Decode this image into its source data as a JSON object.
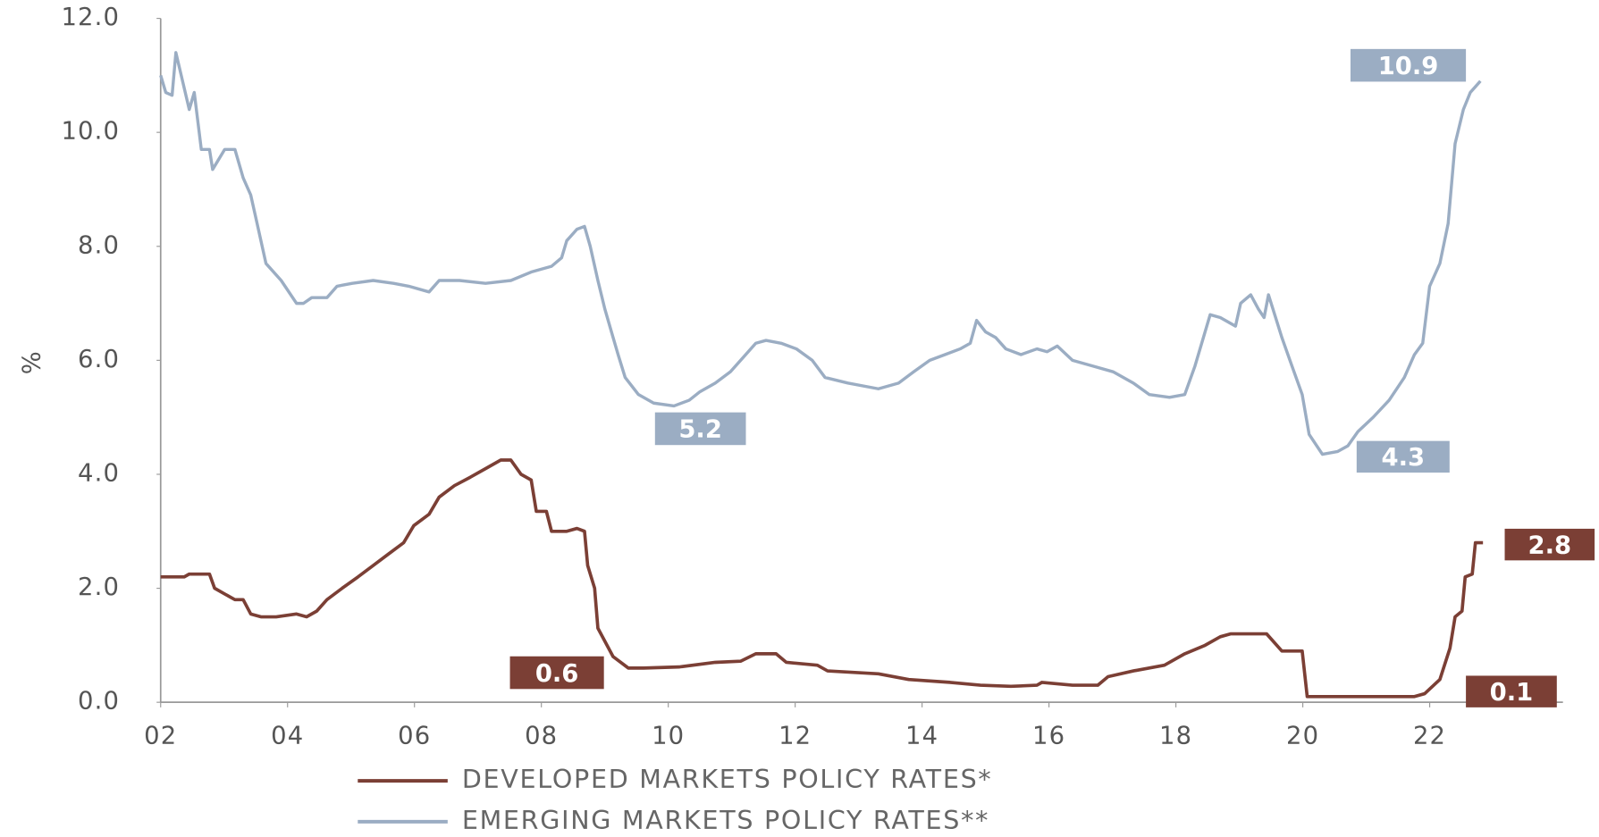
{
  "chart_data": {
    "type": "line",
    "y_label": "%",
    "xlim": [
      2002,
      2024.1
    ],
    "ylim": [
      0,
      12
    ],
    "xticks": [
      {
        "value": 2002,
        "label": "02"
      },
      {
        "value": 2004,
        "label": "04"
      },
      {
        "value": 2006,
        "label": "06"
      },
      {
        "value": 2008,
        "label": "08"
      },
      {
        "value": 2010,
        "label": "10"
      },
      {
        "value": 2012,
        "label": "12"
      },
      {
        "value": 2014,
        "label": "14"
      },
      {
        "value": 2016,
        "label": "16"
      },
      {
        "value": 2018,
        "label": "18"
      },
      {
        "value": 2020,
        "label": "20"
      },
      {
        "value": 2022,
        "label": "22"
      }
    ],
    "yticks": [
      {
        "value": 0,
        "label": "0.0"
      },
      {
        "value": 2,
        "label": "2.0"
      },
      {
        "value": 4,
        "label": "4.0"
      },
      {
        "value": 6,
        "label": "6.0"
      },
      {
        "value": 8,
        "label": "8.0"
      },
      {
        "value": 10,
        "label": "10.0"
      },
      {
        "value": 12,
        "label": "12.0"
      }
    ],
    "grid": false,
    "series": [
      {
        "name": "DEVELOPED  MARKETS POLICY RATES*",
        "color": "#7b3f35",
        "x": [
          2002.0,
          2002.37,
          2002.45,
          2002.77,
          2002.85,
          2003.01,
          2003.17,
          2003.3,
          2003.42,
          2003.58,
          2003.82,
          2004.14,
          2004.3,
          2004.46,
          2004.62,
          2004.86,
          2005.11,
          2005.35,
          2005.59,
          2005.83,
          2005.99,
          2006.23,
          2006.39,
          2006.63,
          2006.88,
          2007.12,
          2007.36,
          2007.52,
          2007.68,
          2007.84,
          2007.92,
          2008.08,
          2008.16,
          2008.4,
          2008.56,
          2008.68,
          2008.73,
          2008.84,
          2008.89,
          2009.13,
          2009.37,
          2009.61,
          2010.17,
          2010.74,
          2011.14,
          2011.38,
          2011.7,
          2011.86,
          2012.35,
          2012.51,
          2013.31,
          2013.79,
          2014.44,
          2014.92,
          2015.4,
          2015.81,
          2015.89,
          2016.37,
          2016.77,
          2016.93,
          2017.33,
          2017.82,
          2018.14,
          2018.46,
          2018.7,
          2018.86,
          2019.43,
          2019.67,
          2019.99,
          2020.07,
          2020.39,
          2021.76,
          2021.92,
          2022.16,
          2022.32,
          2022.4,
          2022.51,
          2022.56,
          2022.67,
          2022.72,
          2022.84
        ],
        "values": [
          2.2,
          2.2,
          2.25,
          2.25,
          2.0,
          1.9,
          1.8,
          1.8,
          1.55,
          1.5,
          1.5,
          1.55,
          1.5,
          1.6,
          1.8,
          2.0,
          2.2,
          2.4,
          2.6,
          2.8,
          3.1,
          3.3,
          3.6,
          3.8,
          3.95,
          4.1,
          4.25,
          4.25,
          4.0,
          3.9,
          3.35,
          3.35,
          3.0,
          3.0,
          3.05,
          3.0,
          2.4,
          2.0,
          1.3,
          0.8,
          0.6,
          0.6,
          0.62,
          0.7,
          0.72,
          0.85,
          0.85,
          0.7,
          0.65,
          0.55,
          0.5,
          0.4,
          0.35,
          0.3,
          0.28,
          0.3,
          0.35,
          0.3,
          0.3,
          0.45,
          0.55,
          0.65,
          0.85,
          1.0,
          1.15,
          1.2,
          1.2,
          0.9,
          0.9,
          0.1,
          0.1,
          0.1,
          0.15,
          0.4,
          0.95,
          1.5,
          1.6,
          2.2,
          2.25,
          2.8,
          2.8
        ]
      },
      {
        "name": "EMERGING MARKETS POLICY RATES**",
        "color": "#9badc3",
        "x": [
          2002.0,
          2002.08,
          2002.18,
          2002.24,
          2002.45,
          2002.53,
          2002.64,
          2002.77,
          2002.82,
          2003.01,
          2003.17,
          2003.3,
          2003.42,
          2003.5,
          2003.66,
          2003.9,
          2004.14,
          2004.25,
          2004.38,
          2004.62,
          2004.78,
          2005.02,
          2005.35,
          2005.67,
          2005.91,
          2006.23,
          2006.39,
          2006.71,
          2007.12,
          2007.52,
          2007.84,
          2008.16,
          2008.32,
          2008.4,
          2008.56,
          2008.68,
          2008.77,
          2008.89,
          2009.0,
          2009.13,
          2009.21,
          2009.32,
          2009.53,
          2009.77,
          2010.09,
          2010.33,
          2010.5,
          2010.74,
          2010.98,
          2011.22,
          2011.38,
          2011.54,
          2011.78,
          2012.02,
          2012.27,
          2012.47,
          2012.83,
          2013.31,
          2013.63,
          2013.87,
          2014.12,
          2014.36,
          2014.6,
          2014.76,
          2014.86,
          2015.0,
          2015.16,
          2015.32,
          2015.56,
          2015.81,
          2015.97,
          2016.13,
          2016.37,
          2016.69,
          2017.01,
          2017.33,
          2017.58,
          2017.9,
          2018.14,
          2018.3,
          2018.54,
          2018.7,
          2018.94,
          2019.02,
          2019.18,
          2019.3,
          2019.39,
          2019.46,
          2019.67,
          2019.83,
          2019.99,
          2020.1,
          2020.31,
          2020.55,
          2020.71,
          2020.87,
          2021.11,
          2021.36,
          2021.6,
          2021.76,
          2021.89,
          2022.0,
          2022.16,
          2022.29,
          2022.4,
          2022.53,
          2022.64,
          2022.8
        ],
        "values": [
          11.0,
          10.7,
          10.65,
          11.4,
          10.4,
          10.7,
          9.7,
          9.7,
          9.35,
          9.7,
          9.7,
          9.2,
          8.9,
          8.5,
          7.7,
          7.4,
          7.0,
          7.0,
          7.1,
          7.1,
          7.3,
          7.35,
          7.4,
          7.35,
          7.3,
          7.2,
          7.4,
          7.4,
          7.35,
          7.4,
          7.55,
          7.65,
          7.8,
          8.1,
          8.3,
          8.35,
          8.0,
          7.4,
          6.9,
          6.4,
          6.1,
          5.7,
          5.4,
          5.25,
          5.2,
          5.3,
          5.45,
          5.6,
          5.8,
          6.1,
          6.3,
          6.35,
          6.3,
          6.2,
          6.0,
          5.7,
          5.6,
          5.5,
          5.6,
          5.8,
          6.0,
          6.1,
          6.2,
          6.3,
          6.7,
          6.5,
          6.4,
          6.2,
          6.1,
          6.2,
          6.15,
          6.25,
          6.0,
          5.9,
          5.8,
          5.6,
          5.4,
          5.35,
          5.4,
          5.9,
          6.8,
          6.75,
          6.6,
          7.0,
          7.15,
          6.9,
          6.75,
          7.15,
          6.4,
          5.9,
          5.4,
          4.7,
          4.35,
          4.4,
          4.5,
          4.75,
          5.0,
          5.3,
          5.7,
          6.1,
          6.3,
          7.3,
          7.7,
          8.4,
          9.8,
          10.4,
          10.7,
          10.9
        ]
      }
    ],
    "annotations": [
      {
        "text": "10.9",
        "color": "#9badc3"
      },
      {
        "text": "5.2",
        "color": "#9badc3"
      },
      {
        "text": "4.3",
        "color": "#9badc3"
      },
      {
        "text": "2.8",
        "color": "#7b3f35"
      },
      {
        "text": "0.6",
        "color": "#7b3f35"
      },
      {
        "text": "0.1",
        "color": "#7b3f35"
      }
    ]
  }
}
